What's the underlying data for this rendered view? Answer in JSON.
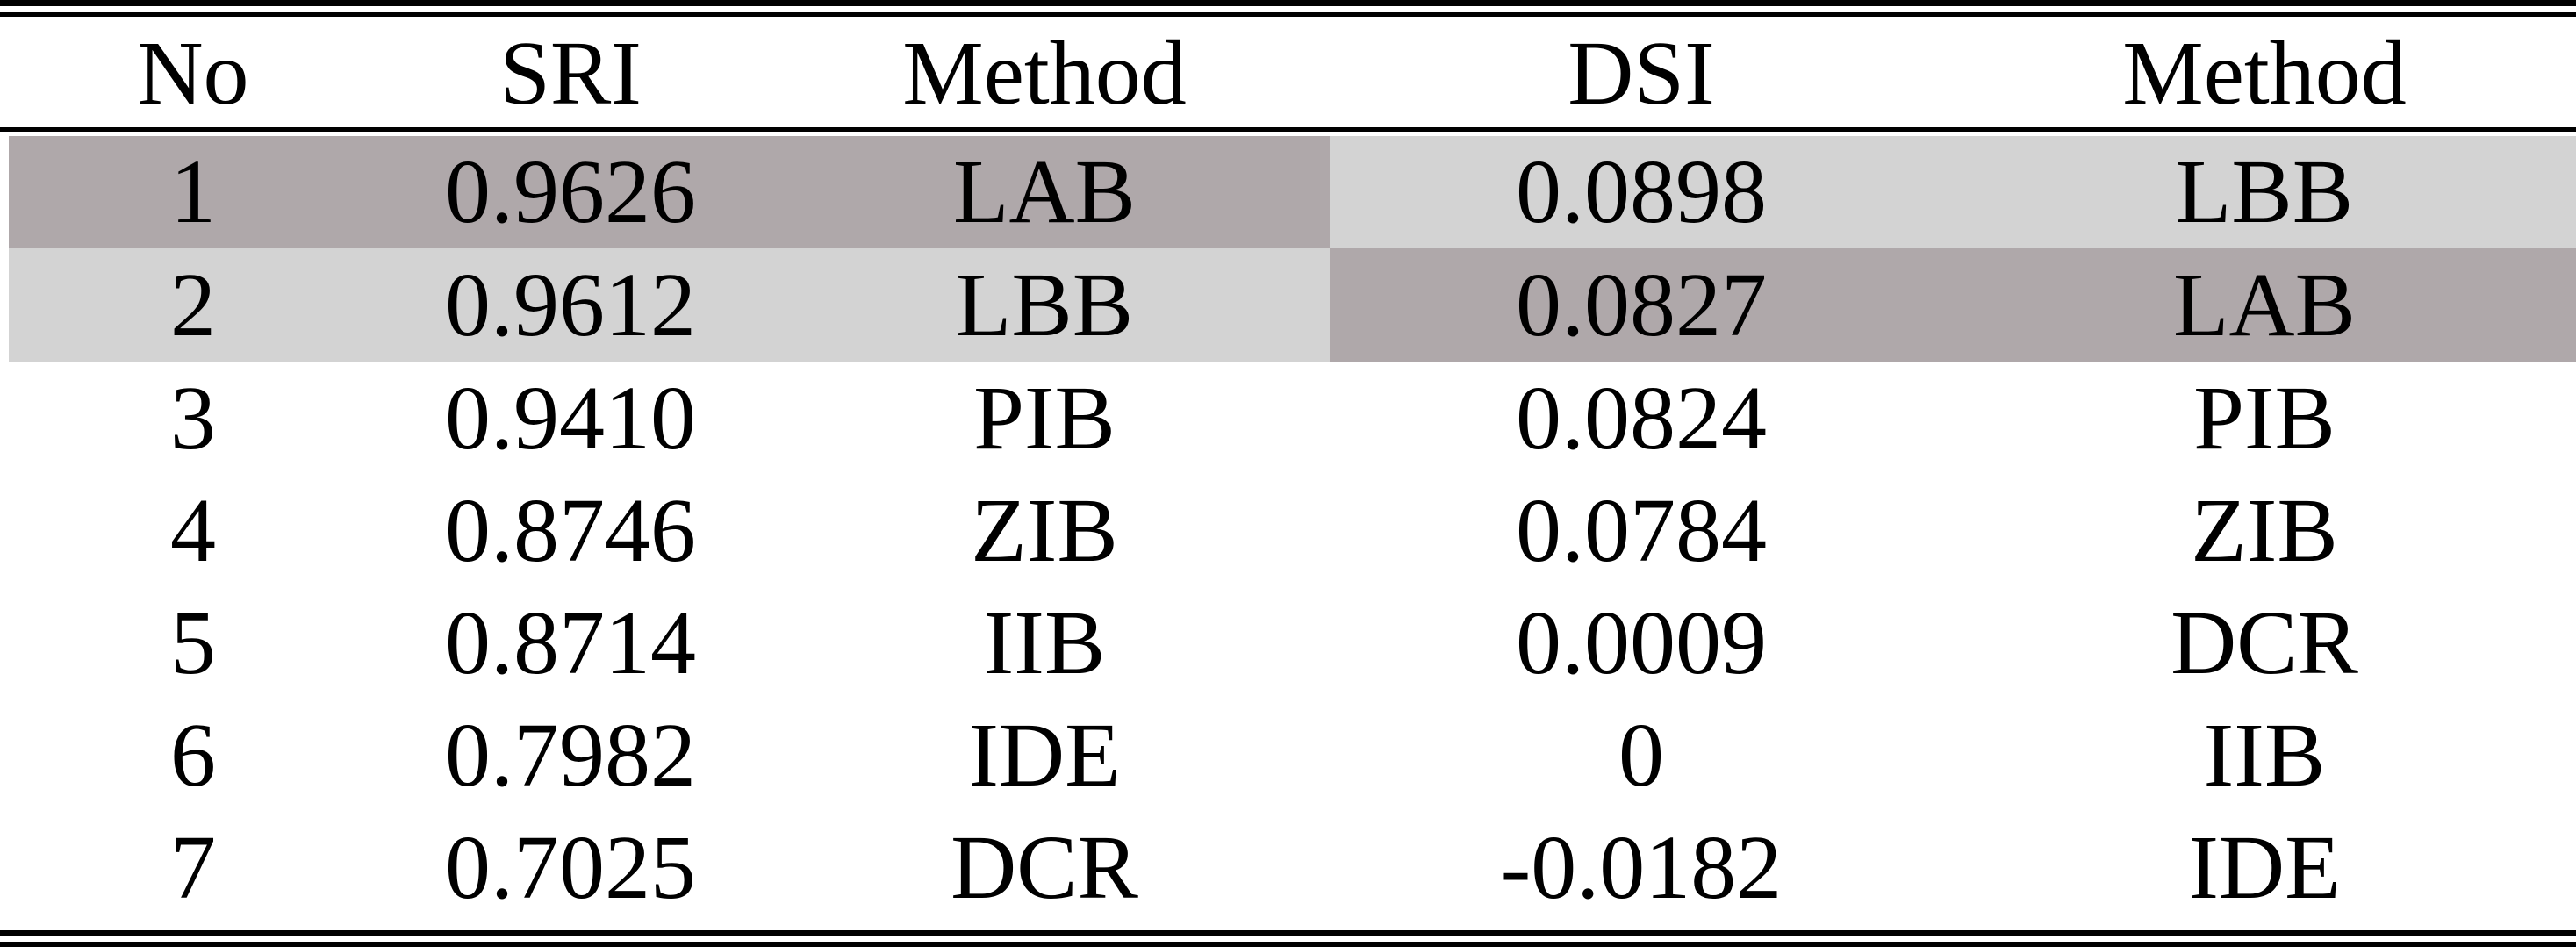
{
  "table": {
    "headers": {
      "no": "No",
      "sri": "SRI",
      "method_sri": "Method",
      "dsi": "DSI",
      "method_dsi": "Method"
    },
    "rows": [
      {
        "no": "1",
        "sri": "0.9626",
        "method_sri": "LAB",
        "dsi": "0.0898",
        "method_dsi": "LBB"
      },
      {
        "no": "2",
        "sri": "0.9612",
        "method_sri": "LBB",
        "dsi": "0.0827",
        "method_dsi": "LAB"
      },
      {
        "no": "3",
        "sri": "0.9410",
        "method_sri": "PIB",
        "dsi": "0.0824",
        "method_dsi": "PIB"
      },
      {
        "no": "4",
        "sri": "0.8746",
        "method_sri": "ZIB",
        "dsi": "0.0784",
        "method_dsi": "ZIB"
      },
      {
        "no": "5",
        "sri": "0.8714",
        "method_sri": "IIB",
        "dsi": "0.0009",
        "method_dsi": "DCR"
      },
      {
        "no": "6",
        "sri": "0.7982",
        "method_sri": "IDE",
        "dsi": "0",
        "method_dsi": "IIB"
      },
      {
        "no": "7",
        "sri": "0.7025",
        "method_sri": "DCR",
        "dsi": "-0.0182",
        "method_dsi": "IDE"
      }
    ]
  },
  "colors": {
    "highlight_dark": "#afa8aa",
    "highlight_light": "#d3d3d3",
    "rule": "#000000",
    "text": "#000000"
  }
}
